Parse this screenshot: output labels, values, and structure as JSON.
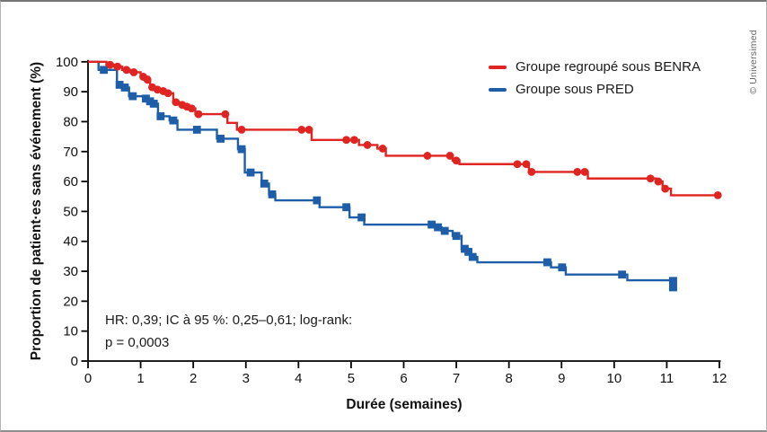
{
  "figure": {
    "copyright": "© Universimed"
  },
  "chart_data": {
    "type": "line",
    "subtype": "kaplan-meier-step",
    "title": "",
    "xlabel": "Durée (semaines)",
    "ylabel": "Proportion de patient·es sans événement (%)",
    "xlim": [
      0,
      12
    ],
    "ylim": [
      0,
      100
    ],
    "xticks": [
      0,
      1,
      2,
      3,
      4,
      5,
      6,
      7,
      8,
      9,
      10,
      11,
      12
    ],
    "yticks": [
      0,
      10,
      20,
      30,
      40,
      50,
      60,
      70,
      80,
      90,
      100
    ],
    "grid": false,
    "legend_position": "top-right-inside",
    "annotation": {
      "line1": "HR: 0,39; IC à 95 %: 0,25–0,61; log-rank:",
      "line2": "p = 0,0003"
    },
    "series": [
      {
        "id": "benra",
        "name": "Groupe regroupé sous BENRA",
        "color": "#e02421",
        "marker": "circle",
        "start": [
          0,
          100
        ],
        "steps": [
          [
            0.35,
            99
          ],
          [
            0.5,
            98.4
          ],
          [
            0.65,
            97.3
          ],
          [
            0.8,
            96.5
          ],
          [
            1.0,
            95
          ],
          [
            1.15,
            94
          ],
          [
            1.18,
            91.5
          ],
          [
            1.28,
            90.7
          ],
          [
            1.38,
            90.2
          ],
          [
            1.48,
            89.5
          ],
          [
            1.62,
            86.5
          ],
          [
            1.74,
            85.6
          ],
          [
            1.84,
            85
          ],
          [
            1.93,
            84.4
          ],
          [
            2.04,
            82.5
          ],
          [
            2.65,
            79.6
          ],
          [
            2.83,
            77.3
          ],
          [
            4.25,
            73.9
          ],
          [
            5.15,
            72.2
          ],
          [
            5.5,
            71
          ],
          [
            5.66,
            68.6
          ],
          [
            6.93,
            67
          ],
          [
            7.06,
            65.8
          ],
          [
            8.38,
            63.2
          ],
          [
            9.5,
            61
          ],
          [
            10.8,
            60
          ],
          [
            10.92,
            57.6
          ],
          [
            11.08,
            55.4
          ]
        ],
        "end_t": 12,
        "censors": [
          [
            0.42,
            99
          ],
          [
            0.56,
            98.4
          ],
          [
            0.73,
            97.3
          ],
          [
            0.87,
            96.5
          ],
          [
            1.05,
            95
          ],
          [
            1.13,
            94
          ],
          [
            1.22,
            91.5
          ],
          [
            1.32,
            90.7
          ],
          [
            1.43,
            90.2
          ],
          [
            1.52,
            89.5
          ],
          [
            1.67,
            86.5
          ],
          [
            1.79,
            85.6
          ],
          [
            1.88,
            85
          ],
          [
            1.97,
            84.4
          ],
          [
            2.1,
            82.5
          ],
          [
            2.61,
            82.5
          ],
          [
            2.92,
            77.3
          ],
          [
            4.06,
            77.3
          ],
          [
            4.2,
            77.3
          ],
          [
            4.91,
            73.9
          ],
          [
            5.06,
            73.9
          ],
          [
            5.31,
            72.2
          ],
          [
            5.6,
            71
          ],
          [
            6.45,
            68.6
          ],
          [
            6.88,
            68.6
          ],
          [
            7.0,
            67
          ],
          [
            8.16,
            65.8
          ],
          [
            8.33,
            65.8
          ],
          [
            8.43,
            63.2
          ],
          [
            9.3,
            63.2
          ],
          [
            9.44,
            63.2
          ],
          [
            10.69,
            61
          ],
          [
            10.84,
            60
          ],
          [
            10.97,
            57.6
          ],
          [
            11.97,
            55.4
          ]
        ]
      },
      {
        "id": "pred",
        "name": "Groupe sous PRED",
        "color": "#1e5ea8",
        "marker": "square",
        "start": [
          0,
          100
        ],
        "steps": [
          [
            0.2,
            97.3
          ],
          [
            0.55,
            92.3
          ],
          [
            0.66,
            91.4
          ],
          [
            0.78,
            88.5
          ],
          [
            1.05,
            87.7
          ],
          [
            1.14,
            86.8
          ],
          [
            1.21,
            86
          ],
          [
            1.33,
            81.8
          ],
          [
            1.55,
            80.4
          ],
          [
            1.7,
            77.3
          ],
          [
            2.45,
            74.3
          ],
          [
            2.85,
            70.8
          ],
          [
            2.98,
            63
          ],
          [
            3.3,
            59.3
          ],
          [
            3.44,
            55.7
          ],
          [
            3.56,
            53.7
          ],
          [
            4.4,
            51.4
          ],
          [
            4.97,
            48
          ],
          [
            5.25,
            45.6
          ],
          [
            6.6,
            44.7
          ],
          [
            6.72,
            43.5
          ],
          [
            6.93,
            41.8
          ],
          [
            7.1,
            37.5
          ],
          [
            7.2,
            36.5
          ],
          [
            7.28,
            34.8
          ],
          [
            7.4,
            33
          ],
          [
            8.8,
            31.3
          ],
          [
            9.08,
            28.9
          ],
          [
            10.25,
            27
          ]
        ],
        "end_t": 11.12,
        "censors": [
          [
            0.3,
            97.3
          ],
          [
            0.6,
            92.3
          ],
          [
            0.7,
            91.4
          ],
          [
            0.85,
            88.5
          ],
          [
            1.1,
            87.7
          ],
          [
            1.18,
            86.8
          ],
          [
            1.25,
            86
          ],
          [
            1.38,
            81.8
          ],
          [
            1.62,
            80.4
          ],
          [
            2.07,
            77.3
          ],
          [
            2.52,
            74.3
          ],
          [
            2.92,
            70.8
          ],
          [
            3.09,
            63
          ],
          [
            3.35,
            59.3
          ],
          [
            3.5,
            55.7
          ],
          [
            4.35,
            53.7
          ],
          [
            4.91,
            51.4
          ],
          [
            5.2,
            48
          ],
          [
            6.53,
            45.6
          ],
          [
            6.65,
            44.7
          ],
          [
            6.78,
            43.5
          ],
          [
            7.0,
            41.8
          ],
          [
            7.16,
            37.5
          ],
          [
            7.23,
            36.5
          ],
          [
            7.31,
            34.8
          ],
          [
            8.73,
            33
          ],
          [
            9.01,
            31.3
          ],
          [
            10.15,
            28.9
          ]
        ],
        "end_marker": {
          "t": 11.12,
          "v": 25.7,
          "tall": true
        }
      }
    ]
  }
}
